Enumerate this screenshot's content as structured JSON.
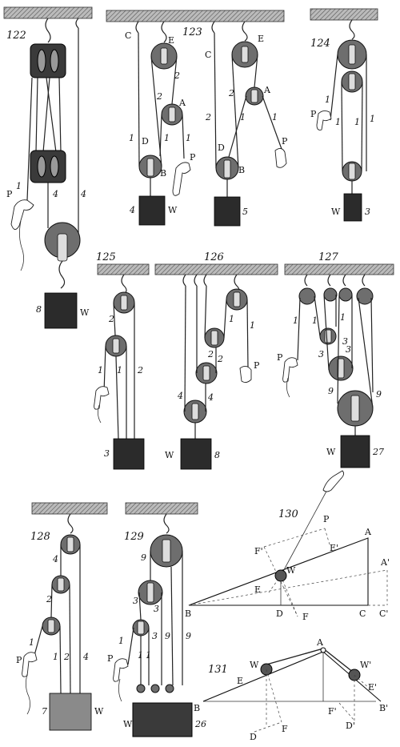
{
  "figures": {
    "f122": {
      "number": "122",
      "labels": {
        "p": "P",
        "w": "W",
        "weight": "8",
        "r1": "1",
        "r4a": "4",
        "r4b": "4"
      }
    },
    "f123": {
      "number": "123",
      "labels": {
        "c1": "C",
        "e1": "E",
        "a1": "A",
        "d1": "D",
        "b1": "B",
        "p1": "P",
        "w1": "W",
        "wt1": "4",
        "c2": "C",
        "e2": "E",
        "a2": "A",
        "d2": "D",
        "b2": "B",
        "p2": "P",
        "wt2": "5",
        "n1": "1",
        "n2": "2",
        "n3": "2",
        "n4": "1",
        "n5": "1",
        "n6": "2",
        "n7": "1",
        "n8": "1",
        "n9": "2"
      }
    },
    "f124": {
      "number": "124",
      "labels": {
        "p": "P",
        "w": "W",
        "weight": "3",
        "r1": "1",
        "r2": "1",
        "r3": "1",
        "r4": "1"
      }
    },
    "f125": {
      "number": "125",
      "labels": {
        "weight": "3",
        "r1": "2",
        "r2": "1",
        "r3": "1",
        "r4": "2"
      }
    },
    "f126": {
      "number": "126",
      "labels": {
        "p": "P",
        "w": "W",
        "weight": "8",
        "r1": "1",
        "r2": "1",
        "r3": "2",
        "r4": "2",
        "r5": "4",
        "r6": "4"
      }
    },
    "f127": {
      "number": "127",
      "labels": {
        "p": "P",
        "w": "W",
        "weight": "27",
        "r1": "1",
        "r2": "1",
        "r3": "3",
        "r4": "3",
        "r5": "9",
        "r6": "9",
        "r7": "1",
        "r8": "3"
      }
    },
    "f128": {
      "number": "128",
      "labels": {
        "p": "P",
        "w": "W",
        "weight": "7",
        "r1": "1",
        "r2": "2",
        "r3": "4",
        "r4": "1",
        "r5": "2",
        "r6": "4"
      }
    },
    "f129": {
      "number": "129",
      "labels": {
        "p": "P",
        "w": "W",
        "weight": "26",
        "r1": "1",
        "r2": "3",
        "r3": "9",
        "r4": "1",
        "r5": "3",
        "r6": "9",
        "r7": "9",
        "r8": "3",
        "r9": "1"
      }
    },
    "f130": {
      "number": "130",
      "labels": {
        "a": "A",
        "a2": "A'",
        "b": "B",
        "c": "C",
        "c2": "C'",
        "d": "D",
        "e": "E",
        "e2": "E'",
        "f": "F",
        "f2": "F'",
        "p": "P",
        "w": "W"
      }
    },
    "f131": {
      "number": "131",
      "labels": {
        "a": "A",
        "b": "B",
        "b2": "B'",
        "d": "D",
        "d2": "D'",
        "e": "E",
        "e2": "E'",
        "f": "F",
        "f2": "F'",
        "w": "W",
        "w2": "W'"
      }
    }
  }
}
